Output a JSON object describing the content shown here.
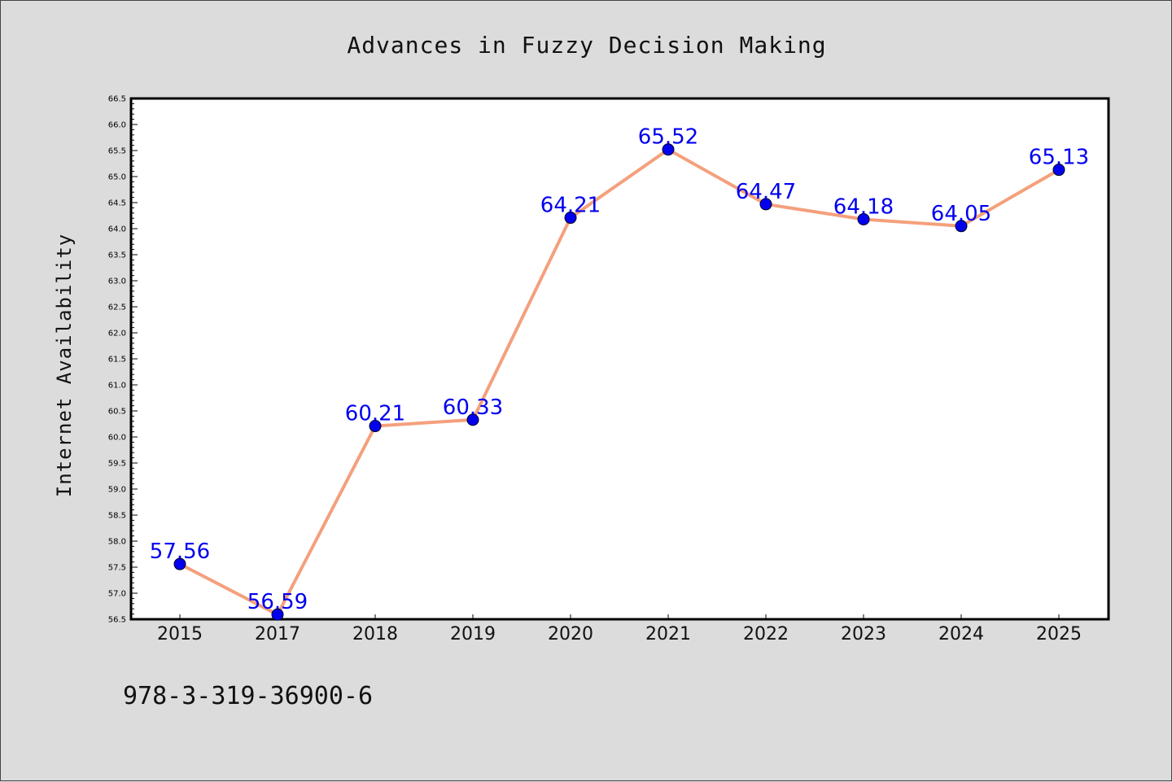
{
  "chart_data": {
    "type": "line",
    "title": "Advances in Fuzzy Decision Making",
    "xlabel": "",
    "ylabel": "Internet Availability",
    "categories": [
      "2015",
      "2017",
      "2018",
      "2019",
      "2020",
      "2021",
      "2022",
      "2023",
      "2024",
      "2025"
    ],
    "series": [
      {
        "values": [
          57.56,
          56.59,
          60.21,
          60.33,
          64.21,
          65.52,
          64.47,
          64.18,
          64.05,
          65.13
        ],
        "labels": [
          "57.56",
          "56.59",
          "60.21",
          "60.33",
          "64.21",
          "65.52",
          "64.47",
          "64.18",
          "64.05",
          "65.13"
        ]
      }
    ],
    "ylim": [
      56.5,
      66.5
    ],
    "y_ticks": [
      "56.5",
      "57.0",
      "57.5",
      "58.0",
      "58.5",
      "59.0",
      "59.5",
      "60.0",
      "60.5",
      "61.0",
      "61.5",
      "62.0",
      "62.5",
      "63.0",
      "63.5",
      "64.0",
      "64.5",
      "65.0",
      "65.5",
      "66.0",
      "66.5"
    ],
    "grid": false,
    "colors": {
      "line": "#f4a07c",
      "marker": "#0000ee",
      "label": "#0000ee",
      "background": "#dcdcdc",
      "plot_background": "#ffffff"
    }
  },
  "footer": {
    "text": "978-3-319-36900-6"
  }
}
